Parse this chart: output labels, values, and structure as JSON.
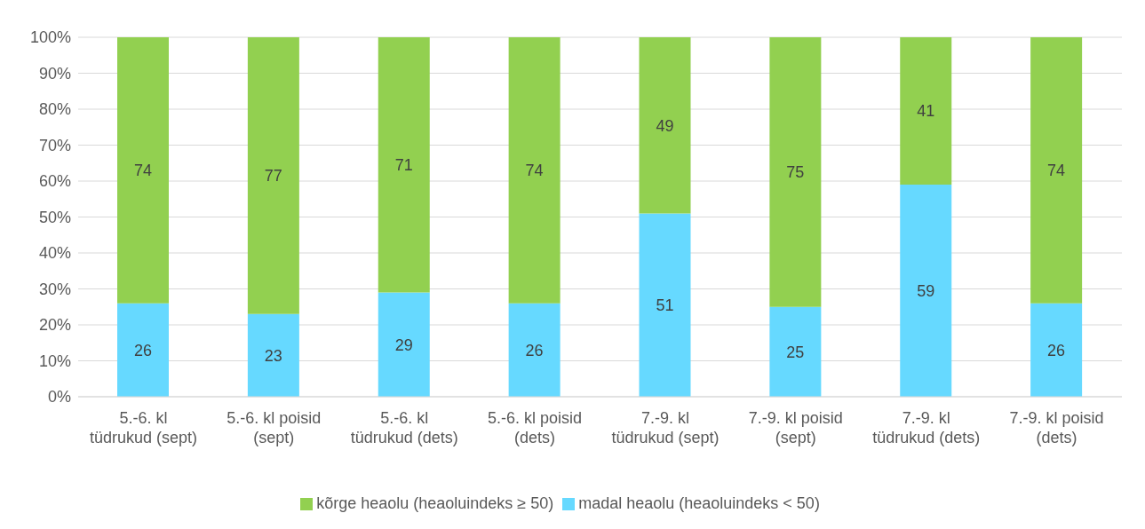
{
  "chart_data": {
    "type": "bar",
    "stacked": true,
    "categories": [
      "5.-6. kl tüdrukud (sept)",
      "5.-6. kl poisid (sept)",
      "5.-6. kl tüdrukud (dets)",
      "5.-6. kl poisid (dets)",
      "7.-9. kl tüdrukud (sept)",
      "7.-9. kl poisid (sept)",
      "7.-9. kl tüdrukud (dets)",
      "7.-9. kl poisid (dets)"
    ],
    "series": [
      {
        "name": "madal heaolu (heaoluindeks < 50)",
        "color": "#66d9ff",
        "values": [
          26,
          23,
          29,
          26,
          51,
          25,
          59,
          26
        ]
      },
      {
        "name": "kõrge heaolu (heaoluindeks ≥ 50)",
        "color": "#92d050",
        "values": [
          74,
          77,
          71,
          74,
          49,
          75,
          41,
          74
        ]
      }
    ],
    "ylim": [
      0,
      100
    ],
    "yticks": [
      {
        "value": 0,
        "label": "0%"
      },
      {
        "value": 10,
        "label": "10%"
      },
      {
        "value": 20,
        "label": "20%"
      },
      {
        "value": 30,
        "label": "30%"
      },
      {
        "value": 40,
        "label": "40%"
      },
      {
        "value": 50,
        "label": "50%"
      },
      {
        "value": 60,
        "label": "60%"
      },
      {
        "value": 70,
        "label": "70%"
      },
      {
        "value": 80,
        "label": "80%"
      },
      {
        "value": 90,
        "label": "90%"
      },
      {
        "value": 100,
        "label": "100%"
      }
    ],
    "grid": "y",
    "legend": "bottom",
    "data_labels": true
  }
}
